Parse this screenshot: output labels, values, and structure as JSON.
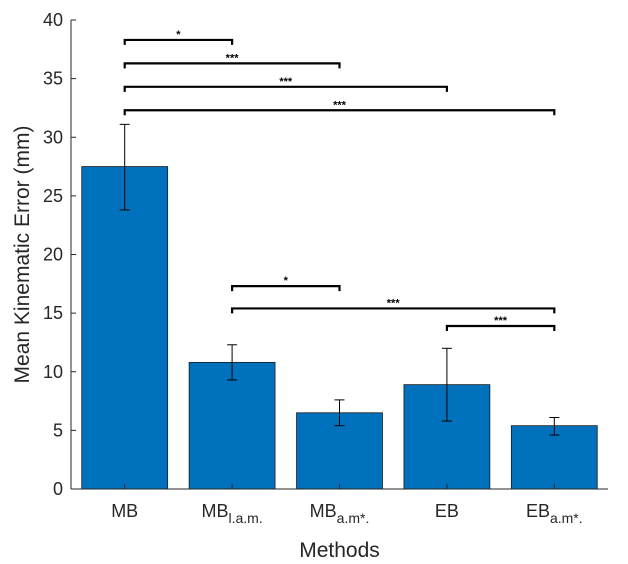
{
  "chart_data": {
    "type": "bar",
    "categories": [
      {
        "base": "MB",
        "sub": ""
      },
      {
        "base": "MB",
        "sub": "l.a.m."
      },
      {
        "base": "MB",
        "sub": "a.m*."
      },
      {
        "base": "EB",
        "sub": ""
      },
      {
        "base": "EB",
        "sub": "a.m*."
      }
    ],
    "values": [
      27.5,
      10.8,
      6.5,
      8.9,
      5.4
    ],
    "errors": [
      {
        "low": 23.8,
        "high": 31.1
      },
      {
        "low": 9.3,
        "high": 12.3
      },
      {
        "low": 5.4,
        "high": 7.6
      },
      {
        "low": 5.8,
        "high": 12.0
      },
      {
        "low": 4.6,
        "high": 6.1
      }
    ],
    "xlabel": "Methods",
    "ylabel": "Mean Kinematic Error (mm)",
    "ylim": [
      0,
      40
    ],
    "yticks": [
      0,
      5,
      10,
      15,
      20,
      25,
      30,
      35,
      40
    ],
    "bar_color": "#0072BD",
    "significance": [
      {
        "from": 0,
        "to": 1,
        "y": 38.3,
        "label": "*"
      },
      {
        "from": 0,
        "to": 2,
        "y": 36.3,
        "label": "***"
      },
      {
        "from": 0,
        "to": 3,
        "y": 34.3,
        "label": "***"
      },
      {
        "from": 0,
        "to": 4,
        "y": 32.3,
        "label": "***"
      },
      {
        "from": 1,
        "to": 2,
        "y": 17.3,
        "label": "*"
      },
      {
        "from": 1,
        "to": 4,
        "y": 15.4,
        "label": "***"
      },
      {
        "from": 3,
        "to": 4,
        "y": 13.9,
        "label": "***"
      }
    ]
  }
}
